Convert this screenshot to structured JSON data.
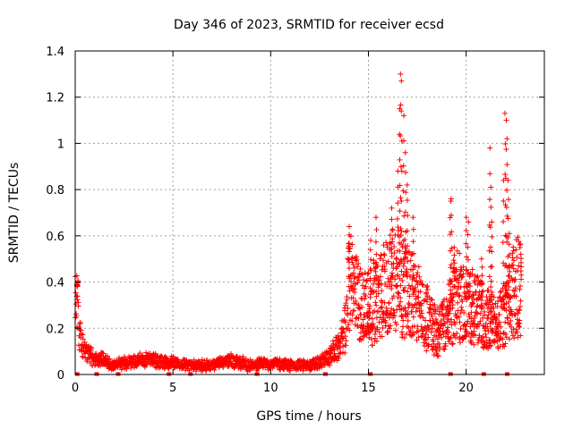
{
  "chart_data": {
    "type": "scatter",
    "title": "Day 346 of 2023, SRMTID for receiver ecsd",
    "xlabel": "GPS time / hours",
    "ylabel": "SRMTID / TECUs",
    "xlim": [
      0,
      24
    ],
    "ylim": [
      0,
      1.4
    ],
    "xticks": [
      0,
      5,
      10,
      15,
      20
    ],
    "yticks": [
      0,
      0.2,
      0.4,
      0.6,
      0.8,
      1,
      1.2,
      1.4
    ],
    "ytick_labels": [
      "0",
      "0.2",
      "0.4",
      "0.6",
      "0.8",
      "1",
      "1.2",
      "1.4"
    ],
    "grid": true,
    "marker": "+",
    "series": [
      {
        "name": "SRMTID",
        "color": "#ff0000",
        "profile": [
          [
            0.0,
            0.33
          ],
          [
            0.1,
            0.38
          ],
          [
            0.2,
            0.18
          ],
          [
            0.4,
            0.12
          ],
          [
            0.6,
            0.09
          ],
          [
            1.0,
            0.07
          ],
          [
            1.5,
            0.06
          ],
          [
            2.0,
            0.04
          ],
          [
            2.5,
            0.05
          ],
          [
            3.0,
            0.06
          ],
          [
            4.0,
            0.06
          ],
          [
            5.0,
            0.05
          ],
          [
            6.0,
            0.04
          ],
          [
            7.0,
            0.04
          ],
          [
            8.0,
            0.06
          ],
          [
            9.0,
            0.04
          ],
          [
            10.0,
            0.05
          ],
          [
            11.0,
            0.04
          ],
          [
            12.0,
            0.04
          ],
          [
            12.5,
            0.05
          ],
          [
            13.0,
            0.08
          ],
          [
            13.5,
            0.12
          ],
          [
            13.8,
            0.2
          ],
          [
            14.0,
            0.4
          ],
          [
            14.3,
            0.35
          ],
          [
            14.7,
            0.3
          ],
          [
            15.0,
            0.3
          ],
          [
            15.5,
            0.33
          ],
          [
            16.0,
            0.38
          ],
          [
            16.5,
            0.42
          ],
          [
            17.0,
            0.38
          ],
          [
            17.5,
            0.3
          ],
          [
            18.0,
            0.25
          ],
          [
            18.5,
            0.18
          ],
          [
            19.0,
            0.22
          ],
          [
            19.5,
            0.35
          ],
          [
            20.0,
            0.3
          ],
          [
            20.5,
            0.28
          ],
          [
            21.0,
            0.25
          ],
          [
            21.5,
            0.22
          ],
          [
            22.0,
            0.25
          ],
          [
            22.5,
            0.38
          ],
          [
            22.8,
            0.4
          ]
        ],
        "spikes": [
          [
            0.1,
            0.39
          ],
          [
            14.0,
            0.64
          ],
          [
            15.1,
            0.58
          ],
          [
            15.4,
            0.68
          ],
          [
            16.2,
            0.72
          ],
          [
            16.5,
            0.88
          ],
          [
            16.6,
            1.15
          ],
          [
            16.65,
            1.3
          ],
          [
            16.7,
            1.27
          ],
          [
            16.8,
            1.12
          ],
          [
            16.9,
            0.96
          ],
          [
            17.0,
            0.82
          ],
          [
            17.3,
            0.68
          ],
          [
            19.2,
            0.75
          ],
          [
            19.25,
            0.76
          ],
          [
            19.4,
            0.55
          ],
          [
            20.0,
            0.68
          ],
          [
            20.1,
            0.66
          ],
          [
            20.8,
            0.5
          ],
          [
            21.2,
            0.98
          ],
          [
            21.25,
            0.81
          ],
          [
            21.3,
            0.66
          ],
          [
            21.9,
            0.84
          ],
          [
            22.0,
            1.13
          ],
          [
            22.05,
            1.1
          ],
          [
            22.1,
            1.02
          ],
          [
            22.15,
            0.84
          ],
          [
            22.2,
            0.61
          ],
          [
            22.8,
            0.52
          ]
        ],
        "zero_points": [
          0.1,
          1.1,
          2.2,
          4.8,
          5.9,
          9.3,
          12.8,
          15.1,
          19.2,
          20.9,
          22.1
        ]
      }
    ]
  }
}
